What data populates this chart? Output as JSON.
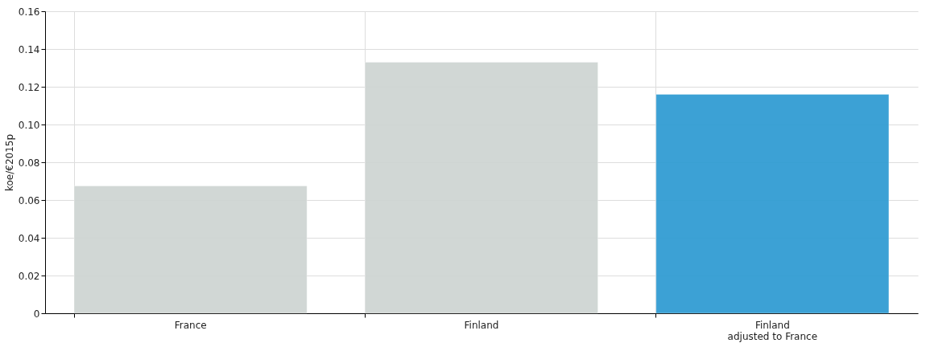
{
  "chart_data": {
    "type": "bar",
    "ylabel": "koe/€2015p",
    "categories": [
      "France",
      "Finland",
      "Finland\nadjusted to France"
    ],
    "values": [
      0.0675,
      0.133,
      0.116
    ],
    "colors": [
      "#cfd5d3",
      "#cfd5d3",
      "#329dd3"
    ],
    "ylim": [
      0,
      0.16
    ],
    "yticks": [
      0,
      0.02,
      0.04,
      0.06,
      0.08,
      {
        "value": 0.1,
        "label": "0.10"
      },
      0.12,
      0.14,
      0.16
    ],
    "grid": true
  }
}
